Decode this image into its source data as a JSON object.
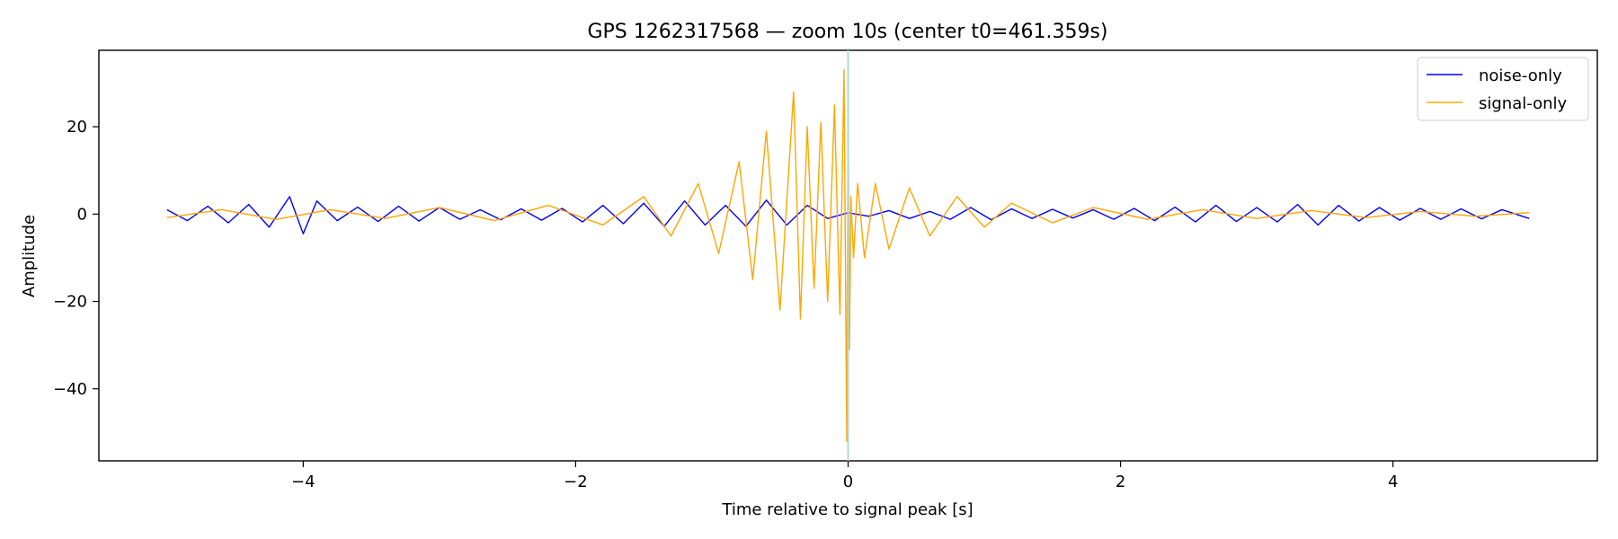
{
  "chart_data": {
    "type": "line",
    "title": "GPS 1262317568 — zoom 10s (center t0=461.359s)",
    "xlabel": "Time relative to signal peak [s]",
    "ylabel": "Amplitude",
    "xlim": [
      -5.5,
      5.5
    ],
    "ylim": [
      -56.5,
      37.5
    ],
    "xticks": [
      -4,
      -2,
      0,
      2,
      4
    ],
    "xtick_labels": [
      "−4",
      "−2",
      "0",
      "2",
      "4"
    ],
    "yticks": [
      -40,
      -20,
      0,
      20
    ],
    "ytick_labels": [
      "−40",
      "−20",
      "0",
      "20"
    ],
    "grid": false,
    "legend_position": "top-right",
    "peak_marker": {
      "x": 0,
      "color": "#add8e6"
    },
    "series": [
      {
        "name": "noise-only",
        "color": "#0000ff",
        "x": [
          -5.0,
          -4.85,
          -4.7,
          -4.55,
          -4.4,
          -4.25,
          -4.1,
          -4.0,
          -3.9,
          -3.75,
          -3.6,
          -3.45,
          -3.3,
          -3.15,
          -3.0,
          -2.85,
          -2.7,
          -2.55,
          -2.4,
          -2.25,
          -2.1,
          -1.95,
          -1.8,
          -1.65,
          -1.5,
          -1.35,
          -1.2,
          -1.05,
          -0.9,
          -0.75,
          -0.6,
          -0.45,
          -0.3,
          -0.15,
          0.0,
          0.15,
          0.3,
          0.45,
          0.6,
          0.75,
          0.9,
          1.05,
          1.2,
          1.35,
          1.5,
          1.65,
          1.8,
          1.95,
          2.1,
          2.25,
          2.4,
          2.55,
          2.7,
          2.85,
          3.0,
          3.15,
          3.3,
          3.45,
          3.6,
          3.75,
          3.9,
          4.05,
          4.2,
          4.35,
          4.5,
          4.65,
          4.8,
          5.0
        ],
        "y": [
          1.0,
          -1.5,
          1.8,
          -2.0,
          2.2,
          -3.0,
          4.0,
          -4.5,
          3.0,
          -1.5,
          1.6,
          -1.7,
          1.8,
          -1.6,
          1.5,
          -1.2,
          1.0,
          -1.3,
          1.2,
          -1.4,
          1.3,
          -1.8,
          2.0,
          -2.2,
          2.5,
          -2.8,
          3.0,
          -2.5,
          2.0,
          -2.8,
          3.2,
          -2.5,
          2.0,
          -1.0,
          0.3,
          -0.5,
          0.8,
          -1.0,
          0.6,
          -1.2,
          1.5,
          -1.3,
          1.2,
          -1.0,
          1.1,
          -0.9,
          1.0,
          -1.2,
          1.3,
          -1.5,
          1.6,
          -1.8,
          2.0,
          -1.7,
          1.5,
          -1.8,
          2.2,
          -2.5,
          2.0,
          -1.6,
          1.5,
          -1.4,
          1.3,
          -1.2,
          1.2,
          -1.1,
          1.0,
          -1.0
        ]
      },
      {
        "name": "signal-only",
        "color": "#ffa500",
        "x": [
          -5.0,
          -4.6,
          -4.2,
          -3.8,
          -3.4,
          -3.0,
          -2.6,
          -2.2,
          -1.8,
          -1.5,
          -1.3,
          -1.1,
          -0.95,
          -0.8,
          -0.7,
          -0.6,
          -0.5,
          -0.4,
          -0.35,
          -0.3,
          -0.25,
          -0.2,
          -0.15,
          -0.1,
          -0.06,
          -0.03,
          -0.01,
          0.0,
          0.01,
          0.02,
          0.04,
          0.07,
          0.12,
          0.2,
          0.3,
          0.45,
          0.6,
          0.8,
          1.0,
          1.2,
          1.5,
          1.8,
          2.2,
          2.6,
          3.0,
          3.4,
          3.8,
          4.2,
          4.6,
          5.0
        ],
        "y": [
          -0.8,
          1.0,
          -1.2,
          1.0,
          -1.0,
          1.5,
          -1.5,
          2.0,
          -2.5,
          4.0,
          -5.0,
          7.0,
          -9.0,
          12.0,
          -15.0,
          19.0,
          -22.0,
          28.0,
          -24.0,
          20.0,
          -17.0,
          21.0,
          -20.0,
          25.0,
          -23.0,
          33.0,
          -52.0,
          28.0,
          -31.0,
          4.0,
          -10.0,
          7.0,
          -10.0,
          7.0,
          -8.0,
          6.0,
          -5.0,
          4.0,
          -3.0,
          2.5,
          -2.0,
          1.5,
          -1.2,
          1.0,
          -1.0,
          0.8,
          -0.8,
          0.6,
          -0.5,
          0.3
        ]
      }
    ]
  }
}
